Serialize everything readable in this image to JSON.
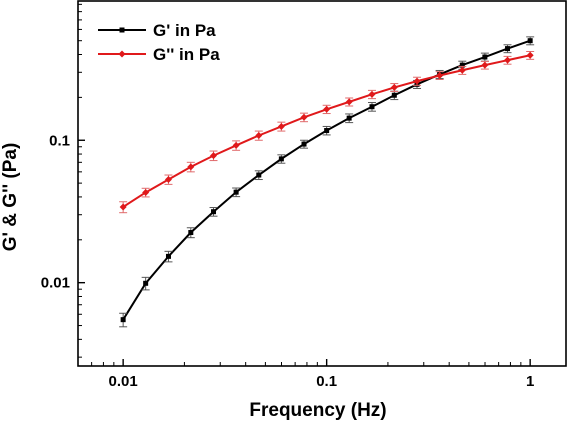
{
  "chart_data": {
    "type": "line",
    "xlabel": "Frequency (Hz)",
    "ylabel": "G' & G'' (Pa)",
    "x_scale": "log",
    "y_scale": "log",
    "xlim": [
      0.006,
      1.5
    ],
    "ylim": [
      0.0026,
      0.95
    ],
    "x_ticks": [
      0.01,
      0.1,
      1
    ],
    "x_tick_labels": [
      "0.01",
      "0.1",
      "1"
    ],
    "y_ticks": [
      0.01,
      0.1
    ],
    "y_tick_labels": [
      "0.01",
      "0.1"
    ],
    "grid": false,
    "legend_position": "top-left",
    "x": [
      0.01,
      0.0129,
      0.0167,
      0.0215,
      0.0278,
      0.0359,
      0.0464,
      0.0599,
      0.0774,
      0.1,
      0.129,
      0.167,
      0.215,
      0.278,
      0.359,
      0.464,
      0.599,
      0.774,
      1.0
    ],
    "series": [
      {
        "name": "G' in Pa",
        "color": "#000000",
        "marker": "square",
        "values": [
          0.0055,
          0.0099,
          0.0153,
          0.0225,
          0.0315,
          0.0432,
          0.057,
          0.074,
          0.094,
          0.117,
          0.143,
          0.172,
          0.207,
          0.247,
          0.29,
          0.337,
          0.384,
          0.44,
          0.5
        ],
        "error": [
          0.0006,
          0.001,
          0.0013,
          0.0018,
          0.0022,
          0.003,
          0.004,
          0.005,
          0.006,
          0.008,
          0.01,
          0.012,
          0.014,
          0.016,
          0.019,
          0.022,
          0.025,
          0.028,
          0.032
        ]
      },
      {
        "name": "G'' in Pa",
        "color": "#e0191b",
        "marker": "diamond",
        "values": [
          0.034,
          0.043,
          0.053,
          0.065,
          0.078,
          0.092,
          0.108,
          0.125,
          0.145,
          0.165,
          0.186,
          0.21,
          0.235,
          0.26,
          0.285,
          0.31,
          0.337,
          0.365,
          0.395
        ],
        "error": [
          0.003,
          0.003,
          0.004,
          0.005,
          0.006,
          0.007,
          0.008,
          0.009,
          0.01,
          0.011,
          0.012,
          0.014,
          0.015,
          0.017,
          0.018,
          0.02,
          0.021,
          0.023,
          0.025
        ]
      }
    ]
  }
}
